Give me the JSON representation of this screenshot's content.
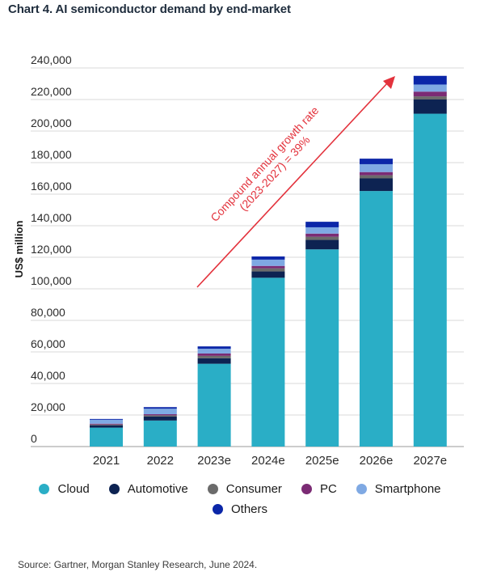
{
  "title": "Chart 4. AI semiconductor demand by end-market",
  "source": "Source: Gartner, Morgan Stanley Research, June 2024.",
  "chart_data": {
    "type": "bar",
    "stacked": true,
    "categories": [
      "2021",
      "2022",
      "2023e",
      "2024e",
      "2025e",
      "2026e",
      "2027e"
    ],
    "ylabel": "US$ million",
    "xlabel": "",
    "ylim": [
      0,
      240000
    ],
    "yticks": [
      0,
      20000,
      40000,
      60000,
      80000,
      100000,
      120000,
      140000,
      160000,
      180000,
      200000,
      220000,
      240000
    ],
    "ytick_labels": [
      "0",
      "20,000",
      "40,000",
      "60,000",
      "80,000",
      "100,000",
      "120,000",
      "140,000",
      "160,000",
      "180,000",
      "200,000",
      "220,000",
      "240,000"
    ],
    "grid": true,
    "legend_position": "bottom",
    "series": [
      {
        "name": "Cloud",
        "color": "#2aaec6",
        "values": [
          12000,
          16500,
          52500,
          107000,
          125000,
          162000,
          211000
        ]
      },
      {
        "name": "Automotive",
        "color": "#0d2352",
        "values": [
          1500,
          2500,
          3500,
          4000,
          6000,
          8000,
          9000
        ]
      },
      {
        "name": "Consumer",
        "color": "#6b6b6b",
        "values": [
          500,
          800,
          1500,
          2000,
          2000,
          2000,
          2000
        ]
      },
      {
        "name": "PC",
        "color": "#7b2b74",
        "values": [
          500,
          700,
          1500,
          1500,
          2000,
          2000,
          3000
        ]
      },
      {
        "name": "Smartphone",
        "color": "#7fa9e3",
        "values": [
          2500,
          3500,
          3000,
          4000,
          4000,
          5000,
          4500
        ]
      },
      {
        "name": "Others",
        "color": "#0b26a8",
        "values": [
          500,
          1000,
          1500,
          2000,
          3500,
          3500,
          5500
        ]
      }
    ],
    "annotation": {
      "text_line1": "Compound annual growth rate",
      "text_line2": "(2023-2027) = 39%",
      "color": "#e3323c"
    }
  }
}
